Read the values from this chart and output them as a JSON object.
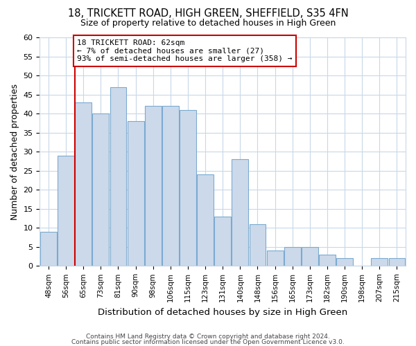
{
  "title1": "18, TRICKETT ROAD, HIGH GREEN, SHEFFIELD, S35 4FN",
  "title2": "Size of property relative to detached houses in High Green",
  "xlabel": "Distribution of detached houses by size in High Green",
  "ylabel": "Number of detached properties",
  "categories": [
    "48sqm",
    "56sqm",
    "65sqm",
    "73sqm",
    "81sqm",
    "90sqm",
    "98sqm",
    "106sqm",
    "115sqm",
    "123sqm",
    "131sqm",
    "140sqm",
    "148sqm",
    "156sqm",
    "165sqm",
    "173sqm",
    "182sqm",
    "190sqm",
    "198sqm",
    "207sqm",
    "215sqm"
  ],
  "values": [
    9,
    29,
    43,
    40,
    47,
    38,
    42,
    42,
    41,
    24,
    13,
    28,
    11,
    4,
    5,
    5,
    3,
    2,
    0,
    2,
    2
  ],
  "bar_color": "#ccd9ea",
  "bar_edge_color": "#7aaad0",
  "highlight_color": "#cc0000",
  "vline_index": 2,
  "annotation_text": "18 TRICKETT ROAD: 62sqm\n← 7% of detached houses are smaller (27)\n93% of semi-detached houses are larger (358) →",
  "annotation_box_color": "#ffffff",
  "annotation_box_edge": "#cc0000",
  "ylim": [
    0,
    60
  ],
  "yticks": [
    0,
    5,
    10,
    15,
    20,
    25,
    30,
    35,
    40,
    45,
    50,
    55,
    60
  ],
  "footer1": "Contains HM Land Registry data © Crown copyright and database right 2024.",
  "footer2": "Contains public sector information licensed under the Open Government Licence v3.0.",
  "background_color": "#ffffff",
  "grid_color": "#c8d8e8"
}
